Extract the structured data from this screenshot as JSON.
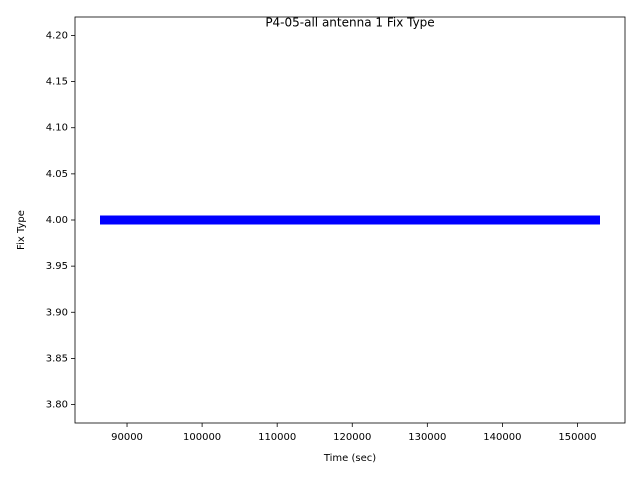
{
  "chart_data": {
    "type": "line",
    "title": "P4-05-all antenna 1 Fix Type",
    "xlabel": "Time (sec)",
    "ylabel": "Fix Type",
    "x": [
      86400,
      153000
    ],
    "values": [
      4,
      4
    ],
    "color": "#0000ff",
    "xlim": [
      83070,
      156330
    ],
    "ylim": [
      3.78,
      4.22
    ],
    "xticks": [
      90000,
      100000,
      110000,
      120000,
      130000,
      140000,
      150000
    ],
    "yticks": [
      {
        "value": 3.8,
        "label": "3.80"
      },
      {
        "value": 3.85,
        "label": "3.85"
      },
      {
        "value": 3.9,
        "label": "3.90"
      },
      {
        "value": 3.95,
        "label": "3.95"
      },
      {
        "value": 4.0,
        "label": "4.00"
      },
      {
        "value": 4.05,
        "label": "4.05"
      },
      {
        "value": 4.1,
        "label": "4.10"
      },
      {
        "value": 4.15,
        "label": "4.15"
      },
      {
        "value": 4.2,
        "label": "4.20"
      }
    ],
    "grid": false
  }
}
